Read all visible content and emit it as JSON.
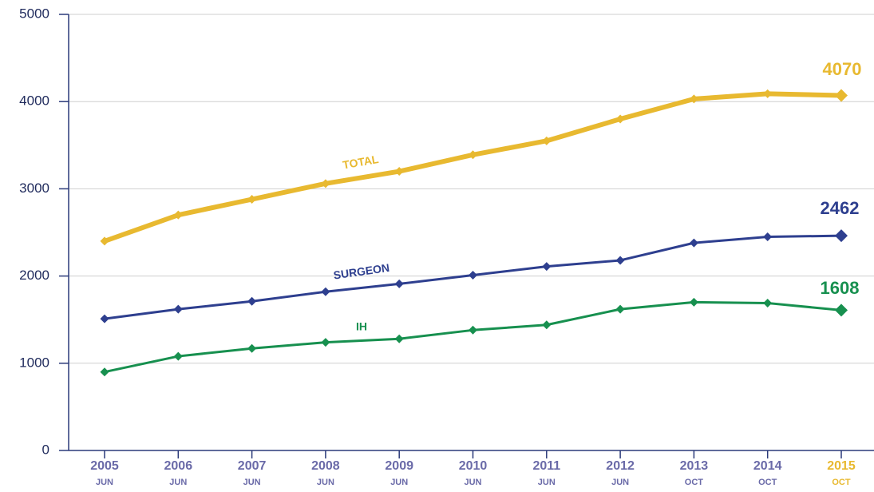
{
  "chart_data": {
    "type": "line",
    "categories": [
      "2005",
      "2006",
      "2007",
      "2008",
      "2009",
      "2010",
      "2011",
      "2012",
      "2013",
      "2014",
      "2015"
    ],
    "months": [
      "JUN",
      "JUN",
      "JUN",
      "JUN",
      "JUN",
      "JUN",
      "JUN",
      "JUN",
      "OCT",
      "OCT",
      "OCT"
    ],
    "category_colors": [
      "#6a6aa8",
      "#6a6aa8",
      "#6a6aa8",
      "#6a6aa8",
      "#6a6aa8",
      "#6a6aa8",
      "#6a6aa8",
      "#6a6aa8",
      "#6a6aa8",
      "#6a6aa8",
      "#e8b930"
    ],
    "series": [
      {
        "name": "TOTAL",
        "color": "#e8b930",
        "values": [
          2400,
          2700,
          2880,
          3060,
          3200,
          3390,
          3550,
          3800,
          4030,
          4090,
          4070
        ]
      },
      {
        "name": "SURGEON",
        "color": "#2e3f8f",
        "values": [
          1510,
          1620,
          1710,
          1820,
          1910,
          2010,
          2110,
          2180,
          2380,
          2450,
          2462
        ]
      },
      {
        "name": "IH",
        "color": "#17904f",
        "values": [
          900,
          1080,
          1170,
          1240,
          1280,
          1380,
          1440,
          1620,
          1700,
          1690,
          1608
        ]
      }
    ],
    "ylim": [
      0,
      5000
    ],
    "yticks": [
      0,
      1000,
      2000,
      3000,
      4000,
      5000
    ],
    "grid": true
  }
}
